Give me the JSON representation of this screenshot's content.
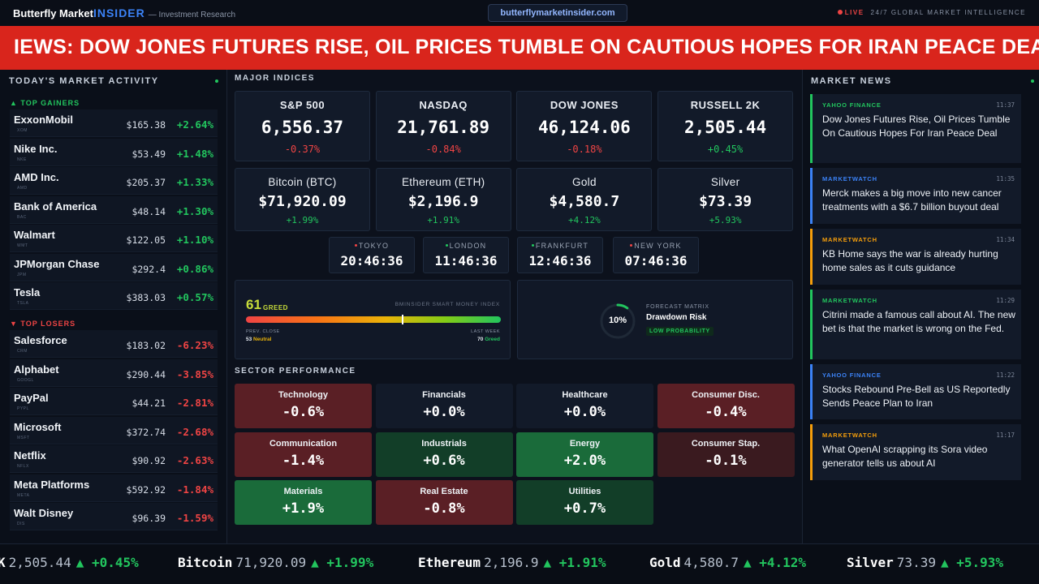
{
  "header": {
    "brand": "Butterfly Market",
    "brand_accent": "INSIDER",
    "tagline": "— Investment Research",
    "url": "butterflymarketinsider.com",
    "live_label": "LIVE",
    "live_text": "24/7 GLOBAL MARKET INTELLIGENCE"
  },
  "banner": {
    "text": "IEWS: DOW JONES FUTURES RISE, OIL PRICES TUMBLE ON CAUTIOUS HOPES FOR IRAN PEACE DEAL"
  },
  "market_activity": {
    "title": "TODAY'S MARKET ACTIVITY",
    "gainers_label": "▲ TOP GAINERS",
    "losers_label": "▼ TOP LOSERS",
    "gainers": [
      {
        "name": "ExxonMobil",
        "ticker": "XOM",
        "price": "$165.38",
        "change": "+2.64%"
      },
      {
        "name": "Nike Inc.",
        "ticker": "NKE",
        "price": "$53.49",
        "change": "+1.48%"
      },
      {
        "name": "AMD Inc.",
        "ticker": "AMD",
        "price": "$205.37",
        "change": "+1.33%"
      },
      {
        "name": "Bank of America",
        "ticker": "BAC",
        "price": "$48.14",
        "change": "+1.30%"
      },
      {
        "name": "Walmart",
        "ticker": "WMT",
        "price": "$122.05",
        "change": "+1.10%"
      },
      {
        "name": "JPMorgan Chase",
        "ticker": "JPM",
        "price": "$292.4",
        "change": "+0.86%"
      },
      {
        "name": "Tesla",
        "ticker": "TSLA",
        "price": "$383.03",
        "change": "+0.57%"
      }
    ],
    "losers": [
      {
        "name": "Salesforce",
        "ticker": "CRM",
        "price": "$183.02",
        "change": "-6.23%"
      },
      {
        "name": "Alphabet",
        "ticker": "GOOGL",
        "price": "$290.44",
        "change": "-3.85%"
      },
      {
        "name": "PayPal",
        "ticker": "PYPL",
        "price": "$44.21",
        "change": "-2.81%"
      },
      {
        "name": "Microsoft",
        "ticker": "MSFT",
        "price": "$372.74",
        "change": "-2.68%"
      },
      {
        "name": "Netflix",
        "ticker": "NFLX",
        "price": "$90.92",
        "change": "-2.63%"
      },
      {
        "name": "Meta Platforms",
        "ticker": "META",
        "price": "$592.92",
        "change": "-1.84%"
      },
      {
        "name": "Walt Disney",
        "ticker": "DIS",
        "price": "$96.39",
        "change": "-1.59%"
      }
    ]
  },
  "indices": {
    "title": "MAJOR INDICES",
    "row1": [
      {
        "name": "S&P 500",
        "value": "6,556.37",
        "change": "-0.37%",
        "dir": "down"
      },
      {
        "name": "NASDAQ",
        "value": "21,761.89",
        "change": "-0.84%",
        "dir": "down"
      },
      {
        "name": "DOW JONES",
        "value": "46,124.06",
        "change": "-0.18%",
        "dir": "down"
      },
      {
        "name": "RUSSELL 2K",
        "value": "2,505.44",
        "change": "+0.45%",
        "dir": "up"
      }
    ],
    "row2": [
      {
        "name": "Bitcoin (BTC)",
        "value": "$71,920.09",
        "change": "+1.99%",
        "dir": "up"
      },
      {
        "name": "Ethereum (ETH)",
        "value": "$2,196.9",
        "change": "+1.91%",
        "dir": "up"
      },
      {
        "name": "Gold",
        "value": "$4,580.7",
        "change": "+4.12%",
        "dir": "up"
      },
      {
        "name": "Silver",
        "value": "$73.39",
        "change": "+5.93%",
        "dir": "up"
      }
    ]
  },
  "clocks": [
    {
      "city": "TOKYO",
      "time": "20:46:36",
      "color": "#ef4444"
    },
    {
      "city": "LONDON",
      "time": "11:46:36",
      "color": "#22c55e"
    },
    {
      "city": "FRANKFURT",
      "time": "12:46:36",
      "color": "#22c55e"
    },
    {
      "city": "NEW YORK",
      "time": "07:46:36",
      "color": "#ef4444"
    }
  ],
  "smart_money": {
    "value": "61",
    "label": "GREED",
    "title": "BMINSIDER SMART MONEY INDEX",
    "level_fraction": 0.61,
    "prev_label": "PREV. CLOSE",
    "prev_value": "53",
    "prev_text": "Neutral",
    "last_label": "LAST WEEK",
    "last_value": "70",
    "last_text": "Greed"
  },
  "forecast": {
    "percent": "10%",
    "fraction": 0.1,
    "label": "FORECAST MATRIX",
    "title": "Drawdown Risk",
    "badge": "LOW PROBABILITY"
  },
  "sectors": {
    "title": "SECTOR PERFORMANCE",
    "items": [
      {
        "name": "Technology",
        "value": "-0.6%",
        "tone": "neg"
      },
      {
        "name": "Financials",
        "value": "+0.0%",
        "tone": "flat"
      },
      {
        "name": "Healthcare",
        "value": "+0.0%",
        "tone": "flat"
      },
      {
        "name": "Consumer Disc.",
        "value": "-0.4%",
        "tone": "neg"
      },
      {
        "name": "Communication",
        "value": "-1.4%",
        "tone": "neg"
      },
      {
        "name": "Industrials",
        "value": "+0.6%",
        "tone": "pos"
      },
      {
        "name": "Energy",
        "value": "+2.0%",
        "tone": "pos-strong"
      },
      {
        "name": "Consumer Stap.",
        "value": "-0.1%",
        "tone": "neg-dark"
      },
      {
        "name": "Materials",
        "value": "+1.9%",
        "tone": "pos-strong"
      },
      {
        "name": "Real Estate",
        "value": "-0.8%",
        "tone": "neg"
      },
      {
        "name": "Utilities",
        "value": "+0.7%",
        "tone": "pos"
      }
    ]
  },
  "news": {
    "title": "MARKET NEWS",
    "items": [
      {
        "source": "YAHOO FINANCE",
        "time": "11:37",
        "headline": "Dow Jones Futures Rise, Oil Prices Tumble On Cautious Hopes For Iran Peace Deal",
        "color": "#22c55e"
      },
      {
        "source": "MARKETWATCH",
        "time": "11:35",
        "headline": "Merck makes a big move into new cancer treatments with a $6.7 billion buyout deal",
        "color": "#3b82f6"
      },
      {
        "source": "MARKETWATCH",
        "time": "11:34",
        "headline": "KB Home says the war is already hurting home sales as it cuts guidance",
        "color": "#f59e0b"
      },
      {
        "source": "MARKETWATCH",
        "time": "11:29",
        "headline": "Citrini made a famous call about AI. The new bet is that the market is wrong on the Fed.",
        "color": "#22c55e"
      },
      {
        "source": "YAHOO FINANCE",
        "time": "11:22",
        "headline": "Stocks Rebound Pre-Bell as US Reportedly Sends Peace Plan to Iran",
        "color": "#3b82f6"
      },
      {
        "source": "MARKETWATCH",
        "time": "11:17",
        "headline": "What OpenAI scrapping its Sora video generator tells us about AI",
        "color": "#f59e0b"
      }
    ]
  },
  "ticker": [
    {
      "name": "K",
      "price": "2,505.44",
      "change": "▲ +0.45%"
    },
    {
      "name": "Bitcoin",
      "price": "71,920.09",
      "change": "▲ +1.99%"
    },
    {
      "name": "Ethereum",
      "price": "2,196.9",
      "change": "▲ +1.91%"
    },
    {
      "name": "Gold",
      "price": "4,580.7",
      "change": "▲ +4.12%"
    },
    {
      "name": "Silver",
      "price": "73.39",
      "change": "▲ +5.93%"
    }
  ]
}
